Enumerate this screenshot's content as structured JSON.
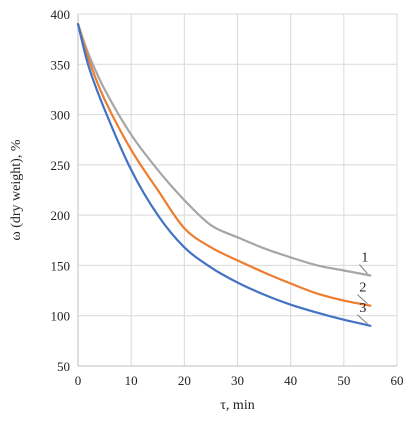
{
  "chart_data": {
    "type": "line",
    "title": "",
    "xlabel": "τ, min",
    "ylabel": "ω (dry weight), %",
    "xlim": [
      0,
      60
    ],
    "ylim": [
      50,
      400
    ],
    "xticks": [
      0,
      10,
      20,
      30,
      40,
      50,
      60
    ],
    "yticks": [
      50,
      100,
      150,
      200,
      250,
      300,
      350,
      400
    ],
    "grid": true,
    "legend": "inline curve labels at right end",
    "series": [
      {
        "name": "1",
        "color": "#a6a6a6",
        "x": [
          0,
          2,
          5,
          10,
          15,
          20,
          25,
          30,
          35,
          40,
          45,
          50,
          55
        ],
        "y": [
          390,
          360,
          325,
          280,
          245,
          215,
          190,
          178,
          167,
          158,
          150,
          145,
          140
        ]
      },
      {
        "name": "2",
        "color": "#ed7d31",
        "x": [
          0,
          2,
          5,
          10,
          15,
          20,
          25,
          30,
          35,
          40,
          45,
          50,
          55
        ],
        "y": [
          390,
          355,
          315,
          265,
          225,
          187,
          168,
          155,
          143,
          132,
          122,
          115,
          110
        ]
      },
      {
        "name": "3",
        "color": "#4472c4",
        "x": [
          0,
          2,
          5,
          10,
          15,
          20,
          25,
          30,
          35,
          40,
          45,
          50,
          55
        ],
        "y": [
          390,
          348,
          305,
          245,
          200,
          168,
          148,
          133,
          121,
          111,
          103,
          96,
          90
        ]
      }
    ]
  }
}
